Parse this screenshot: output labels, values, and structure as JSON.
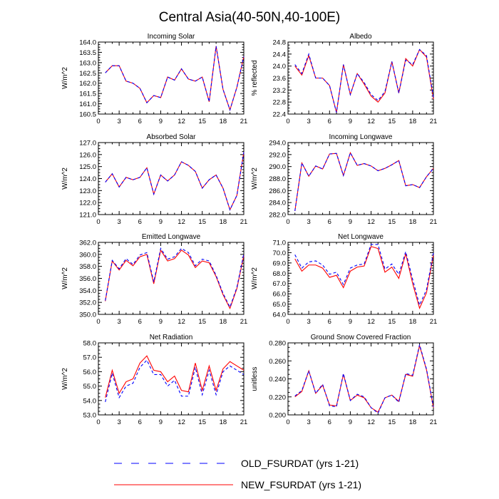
{
  "title": "Central Asia(40-50N,40-100E)",
  "legend": [
    {
      "name": "OLD_FSURDAT (yrs 1-21)",
      "color": "#0000ff",
      "dashed": true
    },
    {
      "name": "NEW_FSURDAT (yrs 1-21)",
      "color": "#ff0000",
      "dashed": false
    }
  ],
  "chart_data": [
    {
      "type": "line",
      "title": "Incoming Solar",
      "ylabel": "W/m^2",
      "xlim": [
        0,
        21
      ],
      "xticks": [
        0,
        3,
        6,
        9,
        12,
        15,
        18,
        21
      ],
      "ylim": [
        160.5,
        164.0
      ],
      "yticks": [
        "160.5",
        "161.0",
        "161.5",
        "162.0",
        "162.5",
        "163.0",
        "163.5",
        "164.0"
      ],
      "x": [
        1,
        2,
        3,
        4,
        5,
        6,
        7,
        8,
        9,
        10,
        11,
        12,
        13,
        14,
        15,
        16,
        17,
        18,
        19,
        20,
        21
      ],
      "series": [
        {
          "values": [
            162.5,
            162.85,
            162.85,
            162.1,
            162.0,
            161.75,
            161.05,
            161.4,
            161.3,
            162.3,
            162.15,
            162.7,
            162.2,
            162.1,
            162.3,
            161.1,
            163.8,
            161.7,
            160.7,
            161.8,
            163.3
          ]
        },
        {
          "values": [
            162.5,
            162.85,
            162.85,
            162.1,
            162.0,
            161.75,
            161.05,
            161.4,
            161.3,
            162.3,
            162.15,
            162.7,
            162.2,
            162.1,
            162.3,
            161.1,
            163.8,
            161.7,
            160.7,
            161.8,
            163.3
          ]
        }
      ]
    },
    {
      "type": "line",
      "title": "Albedo",
      "ylabel": "% reflected",
      "xlim": [
        0,
        21
      ],
      "xticks": [
        0,
        3,
        6,
        9,
        12,
        15,
        18,
        21
      ],
      "ylim": [
        22.4,
        24.8
      ],
      "yticks": [
        "22.4",
        "22.8",
        "23.2",
        "23.6",
        "24.0",
        "24.4",
        "24.8"
      ],
      "x": [
        1,
        2,
        3,
        4,
        5,
        6,
        7,
        8,
        9,
        10,
        11,
        12,
        13,
        14,
        15,
        16,
        17,
        18,
        19,
        20,
        21
      ],
      "series": [
        {
          "values": [
            24.05,
            23.75,
            24.4,
            23.6,
            23.6,
            23.35,
            22.45,
            24.05,
            23.05,
            23.75,
            23.45,
            23.05,
            22.85,
            23.15,
            24.15,
            23.1,
            24.2,
            24.05,
            24.55,
            24.35,
            22.95
          ]
        },
        {
          "values": [
            24.0,
            23.7,
            24.35,
            23.6,
            23.6,
            23.35,
            22.45,
            24.05,
            23.05,
            23.75,
            23.4,
            23.0,
            22.8,
            23.1,
            24.15,
            23.1,
            24.25,
            24.0,
            24.55,
            24.3,
            22.9
          ]
        }
      ]
    },
    {
      "type": "line",
      "title": "Absorbed Solar",
      "ylabel": "W/m^2",
      "xlim": [
        0,
        21
      ],
      "xticks": [
        0,
        3,
        6,
        9,
        12,
        15,
        18,
        21
      ],
      "ylim": [
        121.0,
        127.0
      ],
      "yticks": [
        "121.0",
        "122.0",
        "123.0",
        "124.0",
        "125.0",
        "126.0",
        "127.0"
      ],
      "x": [
        1,
        2,
        3,
        4,
        5,
        6,
        7,
        8,
        9,
        10,
        11,
        12,
        13,
        14,
        15,
        16,
        17,
        18,
        19,
        20,
        21
      ],
      "series": [
        {
          "values": [
            123.7,
            124.4,
            123.3,
            124.1,
            123.9,
            124.1,
            124.9,
            122.7,
            124.3,
            123.8,
            124.3,
            125.4,
            125.1,
            124.6,
            123.2,
            123.9,
            124.3,
            123.2,
            121.4,
            122.6,
            126.2
          ]
        },
        {
          "values": [
            123.7,
            124.4,
            123.3,
            124.1,
            123.9,
            124.1,
            124.9,
            122.7,
            124.3,
            123.8,
            124.3,
            125.4,
            125.1,
            124.6,
            123.2,
            123.9,
            124.3,
            123.2,
            121.4,
            122.6,
            126.2
          ]
        }
      ]
    },
    {
      "type": "line",
      "title": "Incoming Longwave",
      "ylabel": "W/m^2",
      "xlim": [
        0,
        21
      ],
      "xticks": [
        0,
        3,
        6,
        9,
        12,
        15,
        18,
        21
      ],
      "ylim": [
        282.0,
        294.0
      ],
      "yticks": [
        "282.0",
        "284.0",
        "286.0",
        "288.0",
        "290.0",
        "292.0",
        "294.0"
      ],
      "x": [
        1,
        2,
        3,
        4,
        5,
        6,
        7,
        8,
        9,
        10,
        11,
        12,
        13,
        14,
        15,
        16,
        17,
        18,
        19,
        20,
        21
      ],
      "series": [
        {
          "values": [
            282.6,
            290.6,
            288.4,
            290.1,
            289.6,
            292.1,
            292.2,
            288.5,
            292.3,
            290.2,
            290.5,
            290.1,
            289.3,
            289.7,
            290.3,
            291.0,
            286.8,
            287.0,
            286.5,
            288.3,
            289.7
          ]
        },
        {
          "values": [
            282.6,
            290.6,
            288.4,
            290.1,
            289.6,
            292.1,
            292.2,
            288.5,
            292.3,
            290.2,
            290.5,
            290.1,
            289.3,
            289.7,
            290.3,
            291.0,
            286.8,
            287.0,
            286.5,
            288.3,
            289.7
          ]
        }
      ]
    },
    {
      "type": "line",
      "title": "Emitted Longwave",
      "ylabel": "W/m^2",
      "xlim": [
        0,
        21
      ],
      "xticks": [
        0,
        3,
        6,
        9,
        12,
        15,
        18,
        21
      ],
      "ylim": [
        350.0,
        362.0
      ],
      "yticks": [
        "350.0",
        "352.0",
        "354.0",
        "356.0",
        "358.0",
        "360.0",
        "362.0"
      ],
      "x": [
        1,
        2,
        3,
        4,
        5,
        6,
        7,
        8,
        9,
        10,
        11,
        12,
        13,
        14,
        15,
        16,
        17,
        18,
        19,
        20,
        21
      ],
      "series": [
        {
          "values": [
            352.3,
            359.0,
            357.6,
            359.3,
            358.3,
            359.9,
            360.3,
            355.4,
            361.0,
            359.2,
            359.6,
            361.0,
            360.3,
            358.1,
            359.2,
            358.9,
            356.5,
            353.5,
            351.2,
            354.5,
            360.1
          ]
        },
        {
          "values": [
            352.2,
            358.9,
            357.4,
            359.0,
            358.1,
            359.6,
            360.0,
            355.1,
            360.7,
            358.9,
            359.3,
            360.7,
            359.9,
            357.8,
            358.9,
            358.6,
            356.3,
            353.3,
            351.0,
            354.3,
            359.8
          ]
        }
      ]
    },
    {
      "type": "line",
      "title": "Net Longwave",
      "ylabel": "W/m^2",
      "xlim": [
        0,
        21
      ],
      "xticks": [
        0,
        3,
        6,
        9,
        12,
        15,
        18,
        21
      ],
      "ylim": [
        64.0,
        71.0
      ],
      "yticks": [
        "64.0",
        "65.0",
        "66.0",
        "67.0",
        "68.0",
        "69.0",
        "70.0",
        "71.0"
      ],
      "x": [
        1,
        2,
        3,
        4,
        5,
        6,
        7,
        8,
        9,
        10,
        11,
        12,
        13,
        14,
        15,
        16,
        17,
        18,
        19,
        20,
        21
      ],
      "series": [
        {
          "values": [
            69.8,
            68.5,
            69.1,
            69.2,
            68.8,
            67.9,
            68.1,
            66.9,
            68.5,
            68.8,
            68.9,
            70.8,
            70.8,
            68.4,
            68.9,
            67.9,
            70.1,
            67.4,
            64.9,
            66.4,
            70.0
          ]
        },
        {
          "values": [
            69.4,
            68.2,
            68.8,
            68.8,
            68.5,
            67.6,
            67.8,
            66.6,
            68.2,
            68.6,
            68.7,
            70.6,
            70.4,
            68.1,
            68.6,
            67.5,
            69.9,
            67.0,
            64.6,
            66.1,
            69.8
          ]
        }
      ]
    },
    {
      "type": "line",
      "title": "Net Radiation",
      "ylabel": "W/m^2",
      "xlim": [
        0,
        21
      ],
      "xticks": [
        0,
        3,
        6,
        9,
        12,
        15,
        18,
        21
      ],
      "ylim": [
        53.0,
        58.0
      ],
      "yticks": [
        "53.0",
        "54.0",
        "55.0",
        "56.0",
        "57.0",
        "58.0"
      ],
      "x": [
        1,
        2,
        3,
        4,
        5,
        6,
        7,
        8,
        9,
        10,
        11,
        12,
        13,
        14,
        15,
        16,
        17,
        18,
        19,
        20,
        21
      ],
      "series": [
        {
          "values": [
            53.9,
            55.9,
            54.2,
            55.0,
            55.2,
            56.3,
            56.8,
            55.8,
            55.8,
            55.0,
            55.4,
            54.3,
            54.3,
            56.3,
            54.4,
            56.1,
            54.4,
            56.0,
            56.4,
            56.1,
            55.8
          ]
        },
        {
          "values": [
            54.2,
            56.1,
            54.5,
            55.3,
            55.5,
            56.6,
            57.1,
            56.1,
            56.0,
            55.3,
            55.7,
            54.7,
            54.6,
            56.6,
            54.7,
            56.4,
            54.7,
            56.2,
            56.7,
            56.4,
            56.1
          ]
        }
      ]
    },
    {
      "type": "line",
      "title": "Ground Snow Covered Fraction",
      "ylabel": "unitless",
      "xlim": [
        0,
        21
      ],
      "xticks": [
        0,
        3,
        6,
        9,
        12,
        15,
        18,
        21
      ],
      "ylim": [
        0.2,
        0.28
      ],
      "yticks": [
        "0.200",
        "0.220",
        "0.240",
        "0.260",
        "0.280"
      ],
      "x": [
        1,
        2,
        3,
        4,
        5,
        6,
        7,
        8,
        9,
        10,
        11,
        12,
        13,
        14,
        15,
        16,
        17,
        18,
        19,
        20,
        21
      ],
      "series": [
        {
          "values": [
            0.221,
            0.227,
            0.249,
            0.224,
            0.234,
            0.21,
            0.209,
            0.246,
            0.216,
            0.223,
            0.22,
            0.208,
            0.202,
            0.219,
            0.222,
            0.214,
            0.246,
            0.244,
            0.278,
            0.251,
            0.209
          ]
        },
        {
          "values": [
            0.22,
            0.226,
            0.249,
            0.224,
            0.233,
            0.211,
            0.21,
            0.245,
            0.216,
            0.222,
            0.219,
            0.208,
            0.203,
            0.219,
            0.222,
            0.215,
            0.245,
            0.243,
            0.277,
            0.25,
            0.208
          ]
        }
      ]
    }
  ]
}
